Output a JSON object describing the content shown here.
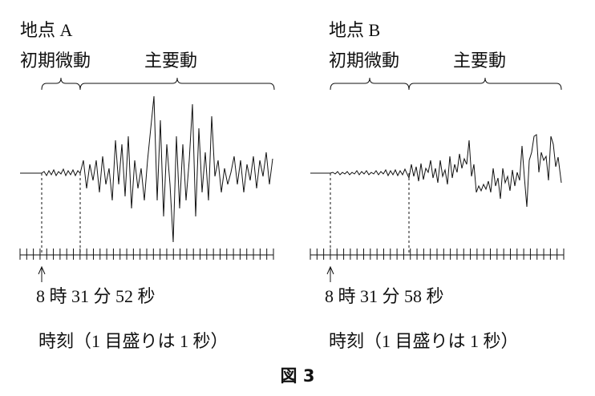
{
  "panels": [
    {
      "title": "地点 A",
      "initial": "初期微動",
      "main": "主要動",
      "time": "8 時 31 分 52 秒",
      "axis_label": "時刻（1 目盛りは 1 秒）"
    },
    {
      "title": "地点 B",
      "initial": "初期微動",
      "main": "主要動",
      "time": "8 時 31 分 58 秒",
      "axis_label": "時刻（1 目盛りは 1 秒）"
    }
  ],
  "caption": "図 3"
}
